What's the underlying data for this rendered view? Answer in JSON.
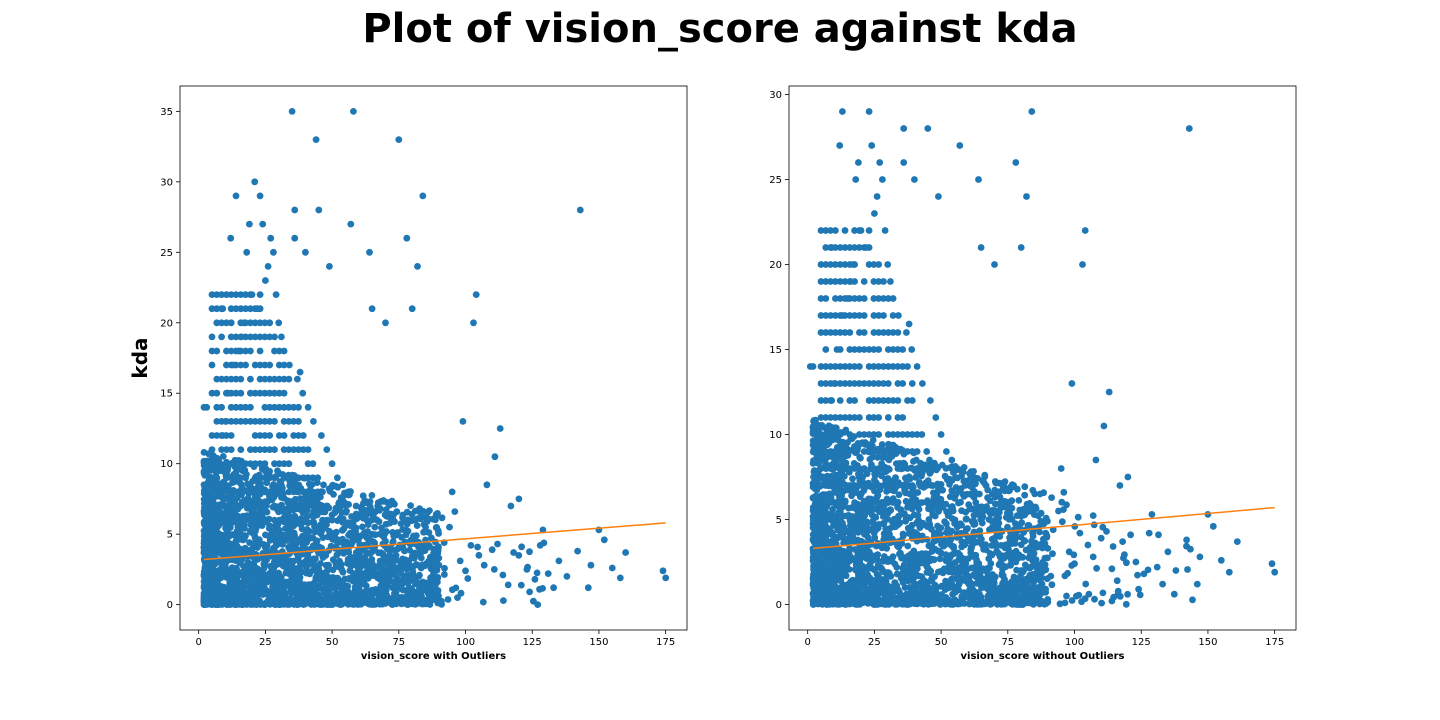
{
  "title": "Plot of vision_score against kda",
  "colors": {
    "points": "#1f77b4",
    "trend": "#ff7f0e"
  },
  "chart_data": [
    {
      "type": "scatter",
      "xlabel": "vision_score with Outliers",
      "ylabel": "kda",
      "xlim": [
        -7,
        183
      ],
      "ylim": [
        -1.8,
        36.8
      ],
      "xticks": [
        0,
        25,
        50,
        75,
        100,
        125,
        150,
        175
      ],
      "yticks": [
        0,
        5,
        10,
        15,
        20,
        25,
        30,
        35
      ],
      "grid": false,
      "trend_line": {
        "x": [
          2,
          175
        ],
        "y": [
          3.2,
          5.8
        ]
      },
      "points": [
        [
          35,
          35
        ],
        [
          58,
          35
        ],
        [
          44,
          33
        ],
        [
          75,
          33
        ],
        [
          21,
          30
        ],
        [
          14,
          29
        ],
        [
          23,
          29
        ],
        [
          84,
          29
        ],
        [
          143,
          28
        ],
        [
          36,
          28
        ],
        [
          45,
          28
        ],
        [
          12,
          26
        ],
        [
          19,
          27
        ],
        [
          24,
          27
        ],
        [
          27,
          26
        ],
        [
          36,
          26
        ],
        [
          57,
          27
        ],
        [
          78,
          26
        ],
        [
          18,
          25
        ],
        [
          28,
          25
        ],
        [
          40,
          25
        ],
        [
          49,
          24
        ],
        [
          64,
          25
        ],
        [
          82,
          24
        ],
        [
          9,
          21
        ],
        [
          104,
          22
        ],
        [
          103,
          20
        ],
        [
          65,
          21
        ],
        [
          80,
          21
        ],
        [
          70,
          20
        ],
        [
          99,
          13
        ],
        [
          113,
          12.5
        ],
        [
          111,
          10.5
        ],
        [
          108,
          8.5
        ],
        [
          95,
          8
        ],
        [
          120,
          7.5
        ],
        [
          117,
          7
        ],
        [
          129,
          5.3
        ],
        [
          150,
          5.3
        ],
        [
          152,
          4.6
        ],
        [
          160,
          3.7
        ],
        [
          146,
          1.2
        ],
        [
          158,
          1.9
        ],
        [
          174,
          2.4
        ],
        [
          175,
          1.9
        ],
        [
          133,
          1.2
        ],
        [
          124,
          0.9
        ],
        [
          97,
          0.5
        ],
        [
          2,
          14
        ],
        [
          3,
          14
        ],
        [
          4,
          7.5
        ],
        [
          5,
          10
        ],
        [
          6,
          6.3
        ],
        [
          7,
          8
        ],
        [
          8,
          9.5
        ],
        [
          9,
          12
        ],
        [
          10,
          13
        ],
        [
          11,
          15
        ],
        [
          13,
          17
        ],
        [
          15,
          18
        ],
        [
          16,
          19
        ],
        [
          17,
          20
        ],
        [
          20,
          22
        ],
        [
          22,
          21
        ],
        [
          25,
          23
        ],
        [
          26,
          24
        ],
        [
          29,
          22
        ],
        [
          30,
          20
        ],
        [
          31,
          19
        ],
        [
          32,
          18
        ],
        [
          34,
          17
        ],
        [
          37,
          16
        ],
        [
          38,
          16.5
        ],
        [
          39,
          15
        ],
        [
          41,
          14
        ],
        [
          43,
          13
        ],
        [
          46,
          12
        ],
        [
          48,
          11
        ],
        [
          50,
          10
        ],
        [
          52,
          9
        ],
        [
          54,
          8.5
        ],
        [
          56,
          8
        ],
        [
          59,
          7
        ],
        [
          61,
          6.5
        ],
        [
          63,
          6
        ],
        [
          66,
          5.5
        ],
        [
          68,
          5
        ],
        [
          70,
          4.5
        ],
        [
          72,
          4
        ],
        [
          74,
          3.5
        ],
        [
          76,
          3
        ],
        [
          78,
          2.5
        ],
        [
          80,
          2
        ],
        [
          82,
          1.5
        ],
        [
          84,
          1
        ],
        [
          86,
          0.8
        ],
        [
          88,
          2.2
        ],
        [
          90,
          3.3
        ],
        [
          92,
          4.4
        ],
        [
          94,
          5.5
        ],
        [
          96,
          6.6
        ],
        [
          98,
          3.1
        ],
        [
          100,
          2.4
        ],
        [
          102,
          4.2
        ],
        [
          105,
          3.5
        ],
        [
          107,
          2.8
        ],
        [
          110,
          3.9
        ],
        [
          112,
          4.3
        ],
        [
          114,
          2.1
        ],
        [
          116,
          1.4
        ],
        [
          118,
          3.7
        ],
        [
          121,
          4.1
        ],
        [
          123,
          2.5
        ],
        [
          126,
          1.8
        ],
        [
          128,
          4.2
        ],
        [
          131,
          2.2
        ],
        [
          135,
          3.1
        ],
        [
          138,
          2.0
        ],
        [
          142,
          3.8
        ],
        [
          147,
          2.8
        ],
        [
          155,
          2.6
        ]
      ]
    },
    {
      "type": "scatter",
      "xlabel": "vision_score without Outliers",
      "ylabel": "",
      "xlim": [
        -7,
        183
      ],
      "ylim": [
        -1.5,
        30.5
      ],
      "xticks": [
        0,
        25,
        50,
        75,
        100,
        125,
        150,
        175
      ],
      "yticks": [
        0,
        5,
        10,
        15,
        20,
        25,
        30
      ],
      "grid": false,
      "trend_line": {
        "x": [
          2,
          175
        ],
        "y": [
          3.3,
          5.7
        ]
      },
      "points": [
        [
          13,
          29
        ],
        [
          23,
          29
        ],
        [
          84,
          29
        ],
        [
          143,
          28
        ],
        [
          36,
          28
        ],
        [
          45,
          28
        ],
        [
          12,
          27
        ],
        [
          19,
          26
        ],
        [
          24,
          27
        ],
        [
          27,
          26
        ],
        [
          36,
          26
        ],
        [
          57,
          27
        ],
        [
          78,
          26
        ],
        [
          18,
          25
        ],
        [
          28,
          25
        ],
        [
          40,
          25
        ],
        [
          49,
          24
        ],
        [
          64,
          25
        ],
        [
          82,
          24
        ],
        [
          9,
          21
        ],
        [
          104,
          22
        ],
        [
          103,
          20
        ],
        [
          65,
          21
        ],
        [
          80,
          21
        ],
        [
          70,
          20
        ],
        [
          99,
          13
        ],
        [
          113,
          12.5
        ],
        [
          111,
          10.5
        ],
        [
          108,
          8.5
        ],
        [
          95,
          8
        ],
        [
          120,
          7.5
        ],
        [
          117,
          7
        ],
        [
          129,
          5.3
        ],
        [
          150,
          5.3
        ],
        [
          152,
          4.6
        ],
        [
          161,
          3.7
        ],
        [
          146,
          1.2
        ],
        [
          158,
          1.9
        ],
        [
          174,
          2.4
        ],
        [
          175,
          1.9
        ],
        [
          133,
          1.2
        ],
        [
          124,
          0.9
        ],
        [
          97,
          0.5
        ],
        [
          1,
          14
        ],
        [
          2,
          14
        ],
        [
          4,
          7.5
        ],
        [
          5,
          10
        ],
        [
          6,
          6.3
        ],
        [
          7,
          8
        ],
        [
          8,
          9.5
        ],
        [
          9,
          12
        ],
        [
          10,
          13
        ],
        [
          11,
          15
        ],
        [
          13,
          17
        ],
        [
          15,
          18
        ],
        [
          16,
          19
        ],
        [
          17,
          20
        ],
        [
          20,
          22
        ],
        [
          22,
          21
        ],
        [
          25,
          23
        ],
        [
          26,
          24
        ],
        [
          29,
          22
        ],
        [
          30,
          20
        ],
        [
          31,
          19
        ],
        [
          32,
          18
        ],
        [
          34,
          17
        ],
        [
          37,
          16
        ],
        [
          38,
          16.5
        ],
        [
          39,
          15
        ],
        [
          41,
          14
        ],
        [
          43,
          13
        ],
        [
          46,
          12
        ],
        [
          48,
          11
        ],
        [
          50,
          10
        ],
        [
          52,
          9
        ],
        [
          54,
          8.5
        ],
        [
          56,
          8
        ],
        [
          59,
          7
        ],
        [
          61,
          6.5
        ],
        [
          63,
          6
        ],
        [
          66,
          5.5
        ],
        [
          68,
          5
        ],
        [
          70,
          4.5
        ],
        [
          72,
          4
        ],
        [
          74,
          3.5
        ],
        [
          76,
          3
        ],
        [
          78,
          2.5
        ],
        [
          80,
          2
        ],
        [
          82,
          1.5
        ],
        [
          84,
          1
        ],
        [
          86,
          0.8
        ],
        [
          88,
          2.2
        ],
        [
          90,
          3.3
        ],
        [
          92,
          4.4
        ],
        [
          94,
          5.5
        ],
        [
          96,
          6.6
        ],
        [
          98,
          3.1
        ],
        [
          100,
          2.4
        ],
        [
          102,
          4.2
        ],
        [
          105,
          3.5
        ],
        [
          107,
          2.8
        ],
        [
          110,
          3.9
        ],
        [
          112,
          4.3
        ],
        [
          114,
          2.1
        ],
        [
          116,
          1.4
        ],
        [
          118,
          3.7
        ],
        [
          121,
          4.1
        ],
        [
          123,
          2.5
        ],
        [
          126,
          1.8
        ],
        [
          128,
          4.2
        ],
        [
          131,
          2.2
        ],
        [
          135,
          3.1
        ],
        [
          138,
          2.0
        ],
        [
          142,
          3.8
        ],
        [
          147,
          2.8
        ],
        [
          155,
          2.6
        ]
      ]
    }
  ]
}
